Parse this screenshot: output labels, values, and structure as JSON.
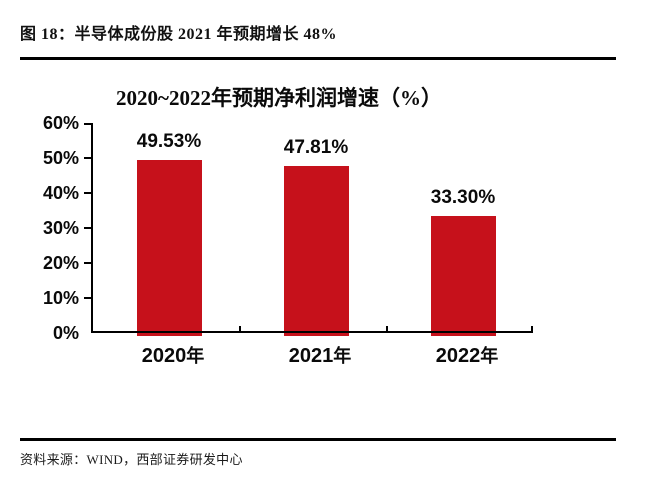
{
  "page": {
    "header_title": "图 18：半导体成份股 2021 年预期增长 48%",
    "source_note": "资料来源：WIND，西部证券研发中心"
  },
  "chart_data": {
    "type": "bar",
    "title": "2020~2022年预期净利润增速（%）",
    "categories": [
      "2020年",
      "2021年",
      "2022年"
    ],
    "values": [
      49.53,
      47.81,
      33.3
    ],
    "value_labels": [
      "49.53%",
      "47.81%",
      "33.30%"
    ],
    "ytick_labels": [
      "0%",
      "10%",
      "20%",
      "30%",
      "40%",
      "50%",
      "60%"
    ],
    "ylim": [
      0,
      60
    ],
    "ytick_step": 10,
    "xlabel": "",
    "ylabel": "",
    "grid": false,
    "legend": "none",
    "bar_color": "#c6111b",
    "axis_color": "#000000",
    "text_color": "#0a0a0a"
  }
}
